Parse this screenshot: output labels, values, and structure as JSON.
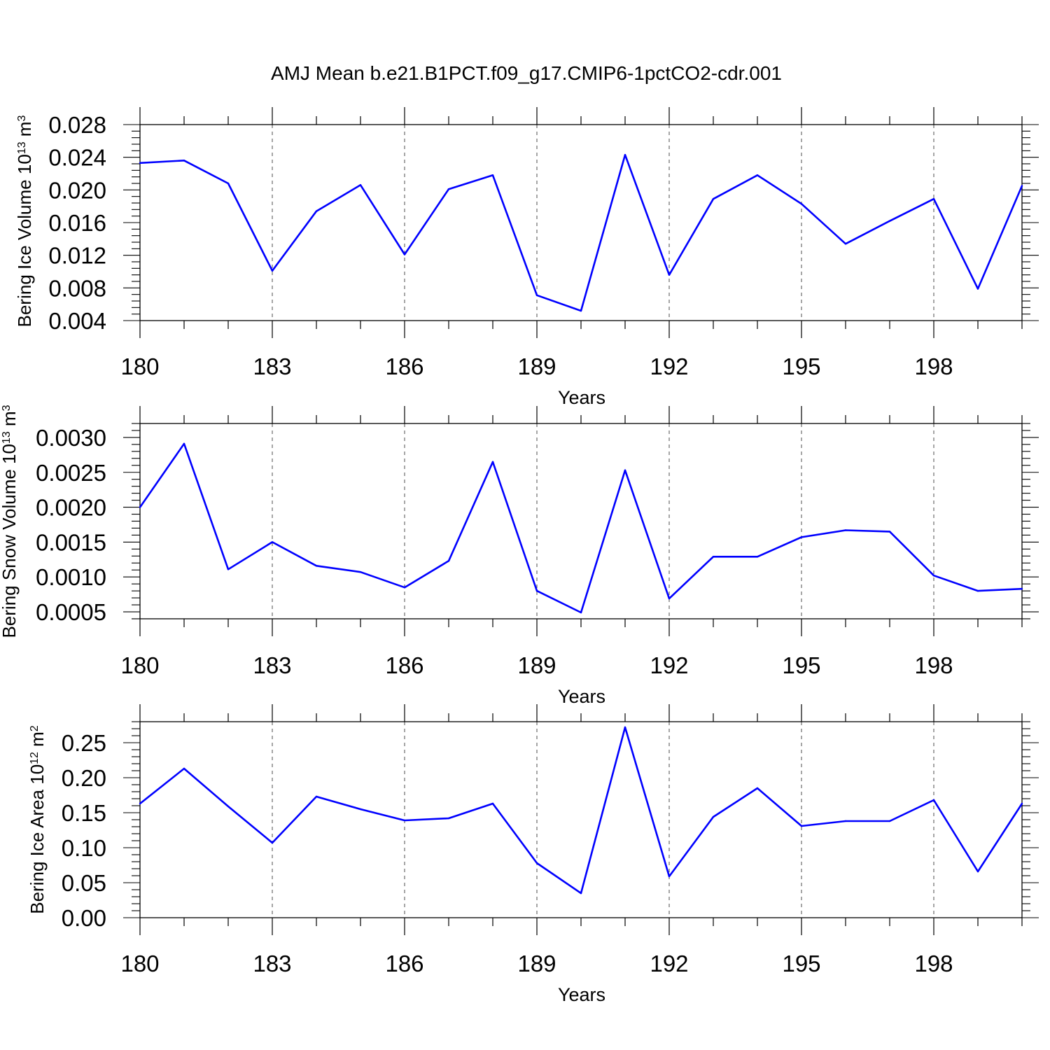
{
  "title": "AMJ Mean b.e21.B1PCT.f09_g17.CMIP6-1pctCO2-cdr.001",
  "line_color": "#0000ff",
  "chart_data": [
    {
      "type": "line",
      "ylabel": "Bering Ice Volume 10",
      "ylabel_exp": "13",
      "ylabel_unit": " m",
      "ylabel_unit_exp": "3",
      "xlabel": "Years",
      "xlim": [
        180,
        200
      ],
      "ylim": [
        0.004,
        0.028
      ],
      "xticks": [
        180,
        183,
        186,
        189,
        192,
        195,
        198
      ],
      "xtick_labels": [
        "180",
        "183",
        "186",
        "189",
        "192",
        "195",
        "198"
      ],
      "yticks": [
        0.004,
        0.008,
        0.012,
        0.016,
        0.02,
        0.024,
        0.028
      ],
      "ytick_labels": [
        "0.004",
        "0.008",
        "0.012",
        "0.016",
        "0.020",
        "0.024",
        "0.028"
      ],
      "grid": "vertical dashed at major x ticks",
      "x": [
        180,
        181,
        182,
        183,
        184,
        185,
        186,
        187,
        188,
        189,
        190,
        191,
        192,
        193,
        194,
        195,
        196,
        197,
        198,
        199,
        200
      ],
      "values": [
        0.0233,
        0.0236,
        0.0208,
        0.0101,
        0.0174,
        0.0206,
        0.0121,
        0.0201,
        0.0218,
        0.0071,
        0.0052,
        0.0243,
        0.0096,
        0.0189,
        0.0218,
        0.0183,
        0.0134,
        0.0162,
        0.0189,
        0.0079,
        0.0205
      ]
    },
    {
      "type": "line",
      "ylabel": "Bering Snow Volume 10",
      "ylabel_exp": "13",
      "ylabel_unit": " m",
      "ylabel_unit_exp": "3",
      "xlabel": "Years",
      "xlim": [
        180,
        200
      ],
      "ylim": [
        0.0004,
        0.0032
      ],
      "xticks": [
        180,
        183,
        186,
        189,
        192,
        195,
        198
      ],
      "xtick_labels": [
        "180",
        "183",
        "186",
        "189",
        "192",
        "195",
        "198"
      ],
      "yticks": [
        0.0005,
        0.001,
        0.0015,
        0.002,
        0.0025,
        0.003
      ],
      "ytick_labels": [
        "0.0005",
        "0.0010",
        "0.0015",
        "0.0020",
        "0.0025",
        "0.0030"
      ],
      "grid": "vertical dashed at major x ticks",
      "x": [
        180,
        181,
        182,
        183,
        184,
        185,
        186,
        187,
        188,
        189,
        190,
        191,
        192,
        193,
        194,
        195,
        196,
        197,
        198,
        199,
        200
      ],
      "values": [
        0.002,
        0.00291,
        0.00111,
        0.0015,
        0.00116,
        0.00107,
        0.00085,
        0.00123,
        0.00265,
        0.0008,
        0.00049,
        0.00253,
        0.00069,
        0.00129,
        0.00129,
        0.00157,
        0.00167,
        0.00165,
        0.00102,
        0.0008,
        0.00083
      ]
    },
    {
      "type": "line",
      "ylabel": "Bering Ice Area 10",
      "ylabel_exp": "12",
      "ylabel_unit": " m",
      "ylabel_unit_exp": "2",
      "xlabel": "Years",
      "xlim": [
        180,
        200
      ],
      "ylim": [
        0.0,
        0.28
      ],
      "xticks": [
        180,
        183,
        186,
        189,
        192,
        195,
        198
      ],
      "xtick_labels": [
        "180",
        "183",
        "186",
        "189",
        "192",
        "195",
        "198"
      ],
      "yticks": [
        0.0,
        0.05,
        0.1,
        0.15,
        0.2,
        0.25
      ],
      "ytick_labels": [
        "0.00",
        "0.05",
        "0.10",
        "0.15",
        "0.20",
        "0.25"
      ],
      "grid": "vertical dashed at major x ticks",
      "x": [
        180,
        181,
        182,
        183,
        184,
        185,
        186,
        187,
        188,
        189,
        190,
        191,
        192,
        193,
        194,
        195,
        196,
        197,
        198,
        199,
        200
      ],
      "values": [
        0.163,
        0.213,
        0.159,
        0.107,
        0.173,
        0.155,
        0.139,
        0.142,
        0.163,
        0.078,
        0.035,
        0.272,
        0.059,
        0.144,
        0.185,
        0.131,
        0.138,
        0.138,
        0.168,
        0.066,
        0.163
      ]
    }
  ]
}
